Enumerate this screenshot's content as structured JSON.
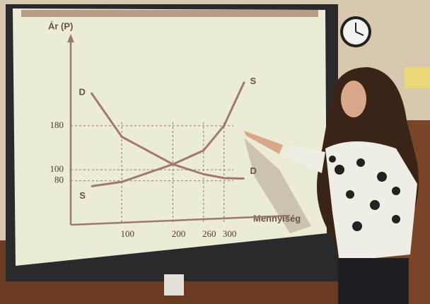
{
  "chart_data": {
    "type": "line",
    "ylabel": "Ár (P)",
    "xlabel": "Mennyiség",
    "x": [
      40,
      100,
      200,
      260,
      300,
      340
    ],
    "series": [
      {
        "name": "D",
        "color": "#a07a68",
        "values": [
          240,
          160,
          110,
          92,
          85,
          84
        ]
      },
      {
        "name": "S",
        "color": "#a07a68",
        "values": [
          70,
          78,
          110,
          135,
          180,
          260
        ]
      }
    ],
    "xlim": [
      0,
      360
    ],
    "xticks": [
      100,
      200,
      260,
      300
    ],
    "ylim": [
      0,
      280
    ],
    "yticks": [
      80,
      100,
      180
    ]
  }
}
